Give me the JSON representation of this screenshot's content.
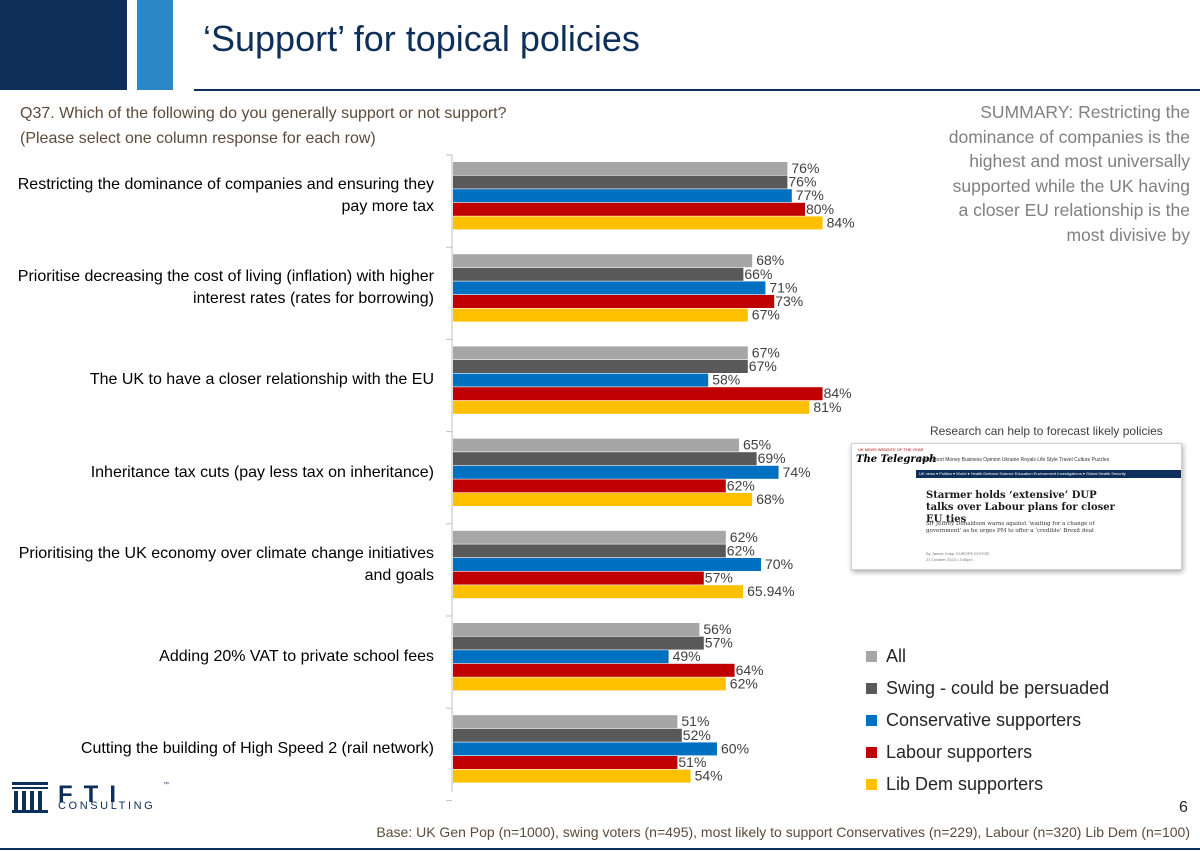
{
  "title": "‘Support’ for topical policies",
  "question": {
    "line1": "Q37. Which of the following do you generally support or not support?",
    "line2": "(Please select one column response for each row)"
  },
  "summary": "SUMMARY: Restricting the dominance of companies is the highest and most universally supported while the UK having a closer EU relationship is the most divisive by",
  "news": {
    "caption": "Research can help to forecast likely policies",
    "topline": "UK NEWS WEBSITE OF THE YEAR",
    "logo": "The Telegraph",
    "nav": "News  Sport  Money  Business  Opinion  Ukraine  Royals  Life  Style  Travel  Culture  Puzzles",
    "subnav": "UK news ▾   Politics ▾   World ▾   Health   Defence   Science   Education   Environment   Investigations ▾   Global Health Security",
    "headline": "Starmer holds ‘extensive’ DUP talks over Labour plans for closer EU ties",
    "standfirst": "Sir Jeffrey Donaldson warns against ‘waiting for a change of government’ as he urges PM to offer a ‘credible’ Brexit deal",
    "byline": "By James Crisp, EUROPE EDITOR",
    "date": "21 October 2023 • 3:00pm"
  },
  "logo": {
    "name": "FTI",
    "sub": "CONSULTING"
  },
  "page_number": "6",
  "base_note": "Base: UK Gen Pop (n=1000), swing voters (n=495), most likely to support Conservatives (n=229), Labour (n=320) Lib Dem (n=100)",
  "colors": {
    "All": "#a6a6a6",
    "Swing - could be persuaded": "#595959",
    "Conservative supporters": "#0070c0",
    "Labour supporters": "#c00000",
    "Lib Dem supporters": "#ffc000",
    "navy": "#0d2f5a",
    "blue": "#2b87c6"
  },
  "chart_data": {
    "type": "bar",
    "orientation": "horizontal",
    "categories": [
      "Restricting the dominance of companies and ensuring they pay more tax",
      "Prioritise decreasing the cost of living (inflation) with higher interest rates (rates for borrowing)",
      "The UK to have a closer relationship with the EU",
      "Inheritance tax cuts (pay less tax on inheritance)",
      "Prioritising the UK economy over climate change initiatives and goals",
      "Adding 20% VAT to private school fees",
      "Cutting the building of High Speed 2 (rail network)"
    ],
    "series": [
      {
        "name": "All",
        "values": [
          76,
          68,
          67,
          65,
          62,
          56,
          51
        ],
        "labels": [
          "76%",
          "68%",
          "67%",
          "65%",
          "62%",
          "56%",
          "51%"
        ]
      },
      {
        "name": "Swing - could be persuaded",
        "values": [
          76,
          66,
          67,
          69,
          62,
          57,
          52
        ],
        "labels": [
          "76%",
          "66%",
          "67%",
          "69%",
          "62%",
          "57%",
          "52%"
        ]
      },
      {
        "name": "Conservative supporters",
        "values": [
          77,
          71,
          58,
          74,
          70,
          49,
          60
        ],
        "labels": [
          "77%",
          "71%",
          "58%",
          "74%",
          "70%",
          "49%",
          "60%"
        ]
      },
      {
        "name": "Labour supporters",
        "values": [
          80,
          73,
          84,
          62,
          57,
          64,
          51
        ],
        "labels": [
          "80%",
          "73%",
          "84%",
          "62%",
          "57%",
          "64%",
          "51%"
        ]
      },
      {
        "name": "Lib Dem supporters",
        "values": [
          84,
          67,
          81,
          68,
          65.94,
          62,
          54
        ],
        "labels": [
          "84%",
          "67%",
          "81%",
          "68%",
          "65.94%",
          "62%",
          "54%"
        ]
      }
    ],
    "xlim": [
      0,
      100
    ],
    "grid": false,
    "legend": "bottom-right"
  }
}
